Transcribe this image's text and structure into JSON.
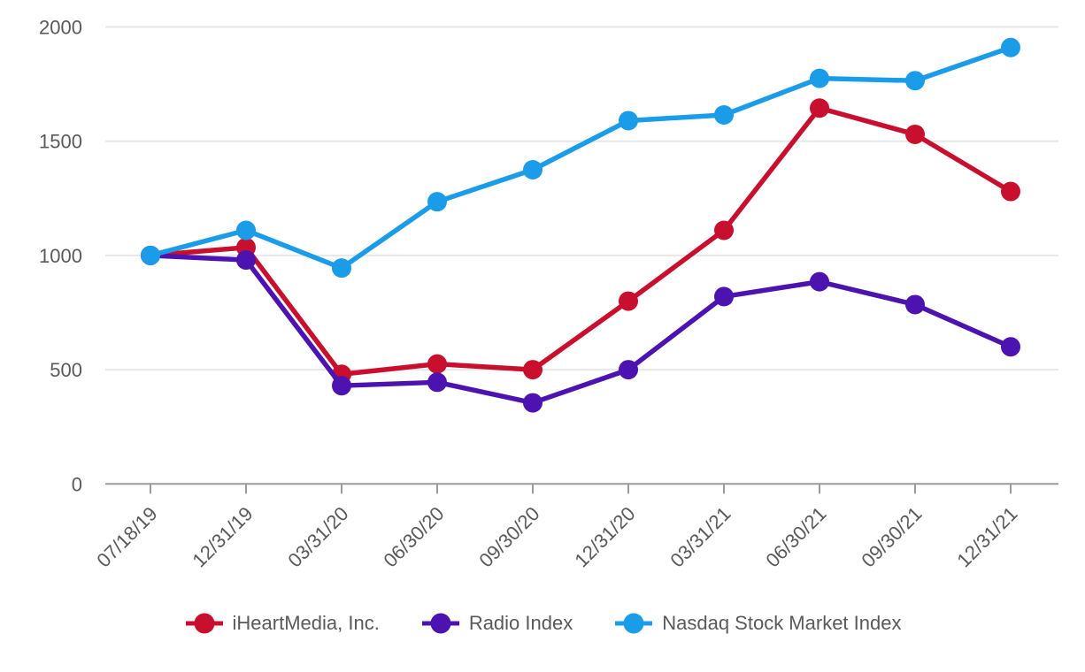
{
  "chart_data": {
    "type": "line",
    "title": "",
    "xlabel": "",
    "ylabel": "",
    "categories": [
      "07/18/19",
      "12/31/19",
      "03/31/20",
      "06/30/20",
      "09/30/20",
      "12/31/20",
      "03/31/21",
      "06/30/21",
      "09/30/21",
      "12/31/21"
    ],
    "series": [
      {
        "name": "iHeartMedia, Inc.",
        "color": "#C8102E",
        "values": [
          1000,
          1035,
          480,
          525,
          500,
          800,
          1110,
          1645,
          1530,
          1280
        ]
      },
      {
        "name": "Radio Index",
        "color": "#4C13B0",
        "values": [
          1000,
          980,
          430,
          445,
          355,
          500,
          820,
          885,
          785,
          600
        ]
      },
      {
        "name": "Nasdaq Stock Market Index",
        "color": "#1B9CE9",
        "values": [
          1000,
          1110,
          945,
          1235,
          1375,
          1590,
          1615,
          1775,
          1765,
          1910
        ]
      }
    ],
    "ylim": [
      0,
      2000
    ],
    "yticks": [
      0,
      500,
      1000,
      1500,
      2000
    ],
    "grid": true,
    "marker": "circle",
    "legend_position": "bottom"
  },
  "colors": {
    "background": "#ffffff",
    "axis_text": "#5a5a5a",
    "gridline": "#e7e7e7",
    "axis_line": "#9b9b9b"
  }
}
